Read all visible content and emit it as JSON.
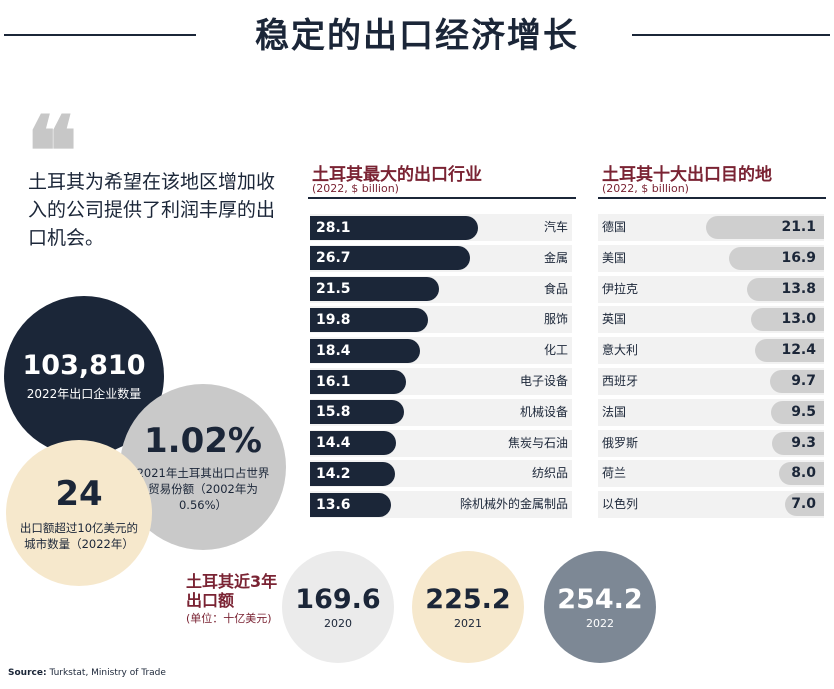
{
  "title": "稳定的出口经济增长",
  "quote": {
    "text": "土耳其为希望在该地区增加收入的公司提供了利润丰厚的出口机会。"
  },
  "stats": {
    "exporters": {
      "value": "103,810",
      "label": "2022年出口企业数量"
    },
    "trade_share": {
      "value": "1.02%",
      "label": "2021年土耳其出口占世界贸易份额（2002年为0.56%）"
    },
    "cities": {
      "value": "24",
      "label": "出口额超过10亿美元的城市数量（2022年）"
    }
  },
  "exports_recent": {
    "title_line1": "土耳其近3年",
    "title_line2": "出口额",
    "unit": "(单位：十亿美元)"
  },
  "source": {
    "label": "Source:",
    "text": "Turkstat, Ministry of Trade"
  },
  "colors": {
    "navy": "#1b2638",
    "maroon": "#7a2333",
    "gray": "#c9c9c9",
    "cream": "#f6e8cc"
  },
  "chart_data": [
    {
      "type": "bar",
      "title": "土耳其最大的出口行业",
      "subtitle": "(2022, $ billion)",
      "categories": [
        "汽车",
        "金属",
        "食品",
        "服饰",
        "化工",
        "电子设备",
        "机械设备",
        "焦炭与石油",
        "纺织品",
        "除机械外的金属制品"
      ],
      "values": [
        28.1,
        26.7,
        21.5,
        19.8,
        18.4,
        16.1,
        15.8,
        14.4,
        14.2,
        13.6
      ],
      "labels": [
        "28.1",
        "26.7",
        "21.5",
        "19.8",
        "18.4",
        "16.1",
        "15.8",
        "14.4",
        "14.2",
        "13.6"
      ],
      "orientation": "horizontal"
    },
    {
      "type": "bar",
      "title": "土耳其十大出口目的地",
      "subtitle": "(2022, $ billion)",
      "categories": [
        "德国",
        "美国",
        "伊拉克",
        "英国",
        "意大利",
        "西班牙",
        "法国",
        "俄罗斯",
        "荷兰",
        "以色列"
      ],
      "values": [
        21.1,
        16.9,
        13.8,
        13.0,
        12.4,
        9.7,
        9.5,
        9.3,
        8.0,
        7.0
      ],
      "labels": [
        "21.1",
        "16.9",
        "13.8",
        "13.0",
        "12.4",
        "9.7",
        "9.5",
        "9.3",
        "8.0",
        "7.0"
      ],
      "orientation": "horizontal"
    },
    {
      "type": "bubble",
      "categories": [
        "2020",
        "2021",
        "2022"
      ],
      "values": [
        169.6,
        225.2,
        254.2
      ],
      "labels": [
        "169.6",
        "225.2",
        "254.2"
      ]
    }
  ]
}
